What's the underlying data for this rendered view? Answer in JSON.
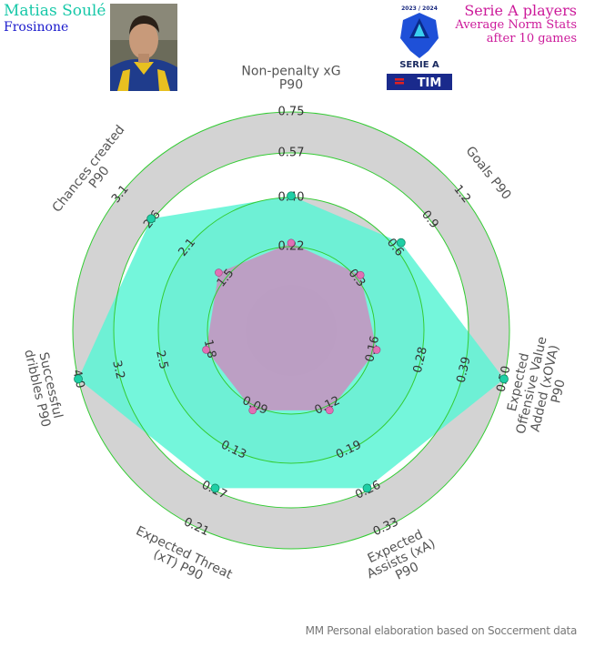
{
  "player": {
    "name": "Matias Soulé",
    "team": "Frosinone"
  },
  "title": {
    "main": "Serie A players",
    "subtitle_lines": [
      "Average Norm Stats",
      "after 10 games"
    ]
  },
  "logo": {
    "season": "2023 / 2024",
    "league": "SERIE A",
    "sponsor": "TIM"
  },
  "credit": "MM Personal elaboration based on Soccerment data",
  "colors": {
    "player_fill": "#5cf5d5",
    "player_point": "#1fcfa6",
    "average_fill": "#c98fbf",
    "average_point": "#e070b4",
    "ring_band": "#d3d3d3",
    "ring_line": "#33cc33",
    "title": "#cc1a9a",
    "name": "#17c8a8",
    "team": "#1a1acc"
  },
  "chart_data": {
    "type": "radar",
    "axes": [
      {
        "label": [
          "Non-penalty xG",
          "P90"
        ],
        "ticks": [
          "0.22",
          "0.40",
          "0.57",
          "0.75"
        ],
        "min": 0.05,
        "max": 0.75
      },
      {
        "label": [
          "Goals P90"
        ],
        "ticks": [
          "0.3",
          "0.6",
          "0.9",
          "1.2"
        ],
        "min": 0.0,
        "max": 1.2
      },
      {
        "label": [
          "Expected",
          "Offensive Value",
          "Added (xOVA)",
          "P90"
        ],
        "ticks": [
          "0.16",
          "0.28",
          "0.39",
          "0.50"
        ],
        "min": 0.05,
        "max": 0.5
      },
      {
        "label": [
          "Expected",
          "Assists (xA)",
          "P90"
        ],
        "ticks": [
          "0.12",
          "0.19",
          "0.26",
          "0.33"
        ],
        "min": 0.05,
        "max": 0.33
      },
      {
        "label": [
          "Expected Threat",
          "(xT) P90"
        ],
        "ticks": [
          "0.09",
          "0.13",
          "0.17",
          "0.21"
        ],
        "min": 0.05,
        "max": 0.21
      },
      {
        "label": [
          "Successful",
          "dribbles P90"
        ],
        "ticks": [
          "1.8",
          "2.5",
          "3.2",
          "4.0"
        ],
        "min": 1.1,
        "max": 4.0
      },
      {
        "label": [
          "Chances created",
          "P90"
        ],
        "ticks": [
          "1.5",
          "2.1",
          "2.6",
          "3.1"
        ],
        "min": 0.9,
        "max": 3.1
      }
    ],
    "series": [
      {
        "name": "Matias Soulé",
        "values": [
          0.41,
          0.66,
          0.5,
          0.26,
          0.17,
          4.0,
          2.6
        ]
      },
      {
        "values": [
          0.22,
          0.3,
          0.16,
          0.12,
          0.09,
          1.8,
          1.5
        ]
      }
    ],
    "grid": true
  }
}
